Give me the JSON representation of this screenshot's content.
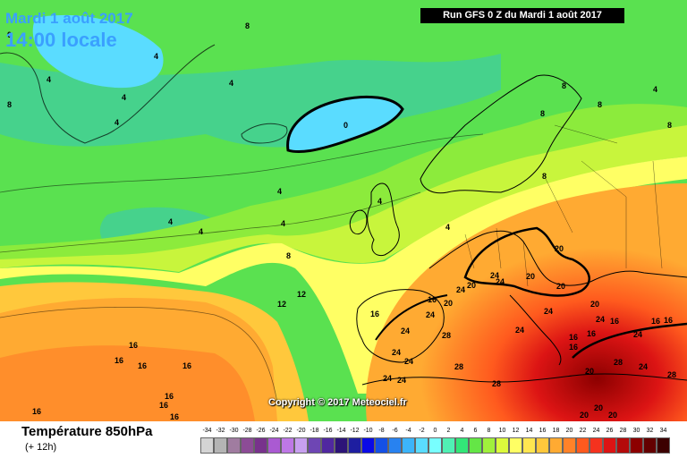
{
  "header": {
    "date": "Mardi 1 août 2017",
    "time": "14:00 locale",
    "run": "Run GFS 0 Z du Mardi 1 août 2017"
  },
  "copyright": "Copyright © 2017 Meteociel.fr",
  "legend": {
    "title": "Température 850hPa",
    "subtitle": "(+ 12h)",
    "scale": [
      {
        "v": "-34",
        "c": "#d4d4d4"
      },
      {
        "v": "-32",
        "c": "#b4b4b4"
      },
      {
        "v": "-30",
        "c": "#a07ca0"
      },
      {
        "v": "-28",
        "c": "#8c4c96"
      },
      {
        "v": "-26",
        "c": "#78328c"
      },
      {
        "v": "-24",
        "c": "#aa5ad2"
      },
      {
        "v": "-22",
        "c": "#be78e6"
      },
      {
        "v": "-20",
        "c": "#c8a0f0"
      },
      {
        "v": "-18",
        "c": "#6e46b4"
      },
      {
        "v": "-16",
        "c": "#5028a0"
      },
      {
        "v": "-14",
        "c": "#2d1478"
      },
      {
        "v": "-12",
        "c": "#1e1ea0"
      },
      {
        "v": "-10",
        "c": "#0a0ae6"
      },
      {
        "v": "-8",
        "c": "#1450e6"
      },
      {
        "v": "-6",
        "c": "#2882f0"
      },
      {
        "v": "-4",
        "c": "#3cb4fa"
      },
      {
        "v": "-2",
        "c": "#5adcff"
      },
      {
        "v": "0",
        "c": "#78ffff"
      },
      {
        "v": "2",
        "c": "#50f0b4"
      },
      {
        "v": "4",
        "c": "#32e678"
      },
      {
        "v": "6",
        "c": "#64e646"
      },
      {
        "v": "8",
        "c": "#a0f03c"
      },
      {
        "v": "10",
        "c": "#dcfa3c"
      },
      {
        "v": "12",
        "c": "#ffff64"
      },
      {
        "v": "14",
        "c": "#ffe650"
      },
      {
        "v": "16",
        "c": "#ffc83c"
      },
      {
        "v": "18",
        "c": "#ffaa32"
      },
      {
        "v": "20",
        "c": "#ff8228"
      },
      {
        "v": "22",
        "c": "#ff5a1e"
      },
      {
        "v": "24",
        "c": "#f5321e"
      },
      {
        "v": "26",
        "c": "#dc1414"
      },
      {
        "v": "28",
        "c": "#b40a0a"
      },
      {
        "v": "30",
        "c": "#8c0000"
      },
      {
        "v": "32",
        "c": "#640000"
      },
      {
        "v": "34",
        "c": "#3c0000"
      }
    ]
  },
  "map_labels": [
    {
      "id": "l1",
      "v": "0"
    },
    {
      "id": "l2",
      "v": "4"
    },
    {
      "id": "l3",
      "v": "4"
    },
    {
      "id": "l4",
      "v": "8"
    },
    {
      "id": "l5",
      "v": "4"
    },
    {
      "id": "l6",
      "v": "4"
    },
    {
      "id": "l7",
      "v": "4"
    },
    {
      "id": "l8",
      "v": "0"
    },
    {
      "id": "l9",
      "v": "4"
    },
    {
      "id": "l10",
      "v": "4"
    },
    {
      "id": "l11",
      "v": "4"
    },
    {
      "id": "l12",
      "v": "4"
    },
    {
      "id": "l13",
      "v": "8"
    },
    {
      "id": "l14",
      "v": "12"
    },
    {
      "id": "l15",
      "v": "12"
    },
    {
      "id": "l16",
      "v": "16"
    },
    {
      "id": "l17",
      "v": "16"
    },
    {
      "id": "l18",
      "v": "16"
    },
    {
      "id": "l19",
      "v": "16"
    },
    {
      "id": "l20",
      "v": "16"
    },
    {
      "id": "l21",
      "v": "16"
    },
    {
      "id": "l22",
      "v": "16"
    },
    {
      "id": "l23",
      "v": "16"
    },
    {
      "id": "l24",
      "v": "8"
    },
    {
      "id": "l25",
      "v": "8"
    },
    {
      "id": "l26",
      "v": "8"
    },
    {
      "id": "l27",
      "v": "4"
    },
    {
      "id": "l28",
      "v": "4"
    },
    {
      "id": "l29",
      "v": "8"
    },
    {
      "id": "l30",
      "v": "8"
    },
    {
      "id": "l31",
      "v": "8"
    },
    {
      "id": "l32",
      "v": "4"
    },
    {
      "id": "l33",
      "v": "20"
    },
    {
      "id": "l34",
      "v": "24"
    },
    {
      "id": "l35",
      "v": "20"
    },
    {
      "id": "l36",
      "v": "24"
    },
    {
      "id": "l37",
      "v": "20"
    },
    {
      "id": "l38",
      "v": "20"
    },
    {
      "id": "l39",
      "v": "24"
    },
    {
      "id": "l40",
      "v": "20"
    },
    {
      "id": "l41",
      "v": "16"
    },
    {
      "id": "l42",
      "v": "20"
    },
    {
      "id": "l43",
      "v": "24"
    },
    {
      "id": "l44",
      "v": "24"
    },
    {
      "id": "l45",
      "v": "16"
    },
    {
      "id": "l46",
      "v": "24"
    },
    {
      "id": "l47",
      "v": "28"
    },
    {
      "id": "l48",
      "v": "24"
    },
    {
      "id": "l49",
      "v": "24"
    },
    {
      "id": "l50",
      "v": "24"
    },
    {
      "id": "l51",
      "v": "28"
    },
    {
      "id": "l52",
      "v": "24"
    },
    {
      "id": "l53",
      "v": "28"
    },
    {
      "id": "l54",
      "v": "24"
    },
    {
      "id": "l55",
      "v": "16"
    },
    {
      "id": "l56",
      "v": "16"
    },
    {
      "id": "l57",
      "v": "16"
    },
    {
      "id": "l58",
      "v": "24"
    },
    {
      "id": "l59",
      "v": "16"
    },
    {
      "id": "l60",
      "v": "24"
    },
    {
      "id": "l61",
      "v": "20"
    },
    {
      "id": "l62",
      "v": "28"
    },
    {
      "id": "l63",
      "v": "24"
    },
    {
      "id": "l64",
      "v": "28"
    },
    {
      "id": "l65",
      "v": "20"
    },
    {
      "id": "l66",
      "v": "20"
    },
    {
      "id": "l67",
      "v": "20"
    },
    {
      "id": "l68",
      "v": "16"
    },
    {
      "id": "l69",
      "v": "16"
    }
  ]
}
